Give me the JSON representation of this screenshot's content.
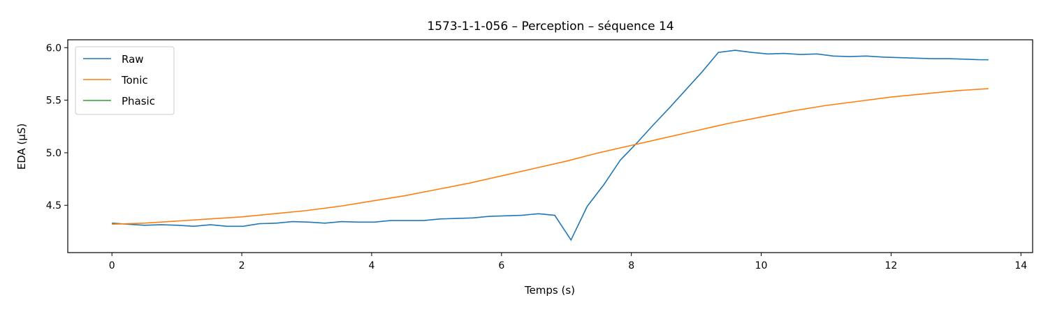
{
  "chart_data": {
    "type": "line",
    "title": "1573-1-1-056 – Perception – séquence 14",
    "xlabel": "Temps (s)",
    "ylabel": "EDA (µS)",
    "xlim": [
      -0.68,
      14.18
    ],
    "ylim": [
      4.05,
      6.075
    ],
    "xticks": [
      0,
      2,
      4,
      6,
      8,
      10,
      12,
      14
    ],
    "yticks": [
      4.5,
      5.0,
      5.5,
      6.0
    ],
    "xtick_labels": [
      "0",
      "2",
      "4",
      "6",
      "8",
      "10",
      "12",
      "14"
    ],
    "ytick_labels": [
      "4.5",
      "5.0",
      "5.5",
      "6.0"
    ],
    "grid": false,
    "legend_position": "upper-left",
    "series": [
      {
        "name": "Raw",
        "color": "#1f77b4",
        "x": [
          0,
          0.25,
          0.5,
          0.76,
          1.01,
          1.26,
          1.52,
          1.77,
          2.02,
          2.27,
          2.53,
          2.78,
          3.03,
          3.28,
          3.54,
          3.79,
          4.04,
          4.29,
          4.55,
          4.8,
          5.05,
          5.3,
          5.56,
          5.81,
          6.06,
          6.31,
          6.57,
          6.82,
          7.07,
          7.32,
          7.58,
          7.83,
          8.08,
          8.33,
          8.59,
          8.84,
          9.09,
          9.34,
          9.6,
          9.85,
          10.1,
          10.35,
          10.61,
          10.86,
          11.11,
          11.36,
          11.62,
          11.87,
          12.12,
          12.37,
          12.63,
          12.88,
          13.13,
          13.38,
          13.5
        ],
        "values": [
          4.33,
          4.32,
          4.31,
          4.315,
          4.31,
          4.3,
          4.315,
          4.3,
          4.3,
          4.325,
          4.33,
          4.345,
          4.34,
          4.33,
          4.345,
          4.34,
          4.34,
          4.355,
          4.355,
          4.355,
          4.37,
          4.375,
          4.38,
          4.395,
          4.4,
          4.405,
          4.42,
          4.405,
          4.17,
          4.49,
          4.7,
          4.93,
          5.09,
          5.26,
          5.43,
          5.6,
          5.77,
          5.955,
          5.975,
          5.955,
          5.94,
          5.945,
          5.935,
          5.94,
          5.92,
          5.915,
          5.92,
          5.91,
          5.905,
          5.9,
          5.895,
          5.895,
          5.89,
          5.885,
          5.885
        ]
      },
      {
        "name": "Tonic",
        "color": "#ff7f0e",
        "x": [
          0,
          0.5,
          1,
          1.5,
          2,
          2.5,
          3,
          3.5,
          4,
          4.5,
          5,
          5.5,
          6,
          6.5,
          7,
          7.5,
          8,
          8.5,
          9,
          9.5,
          10,
          10.5,
          11,
          11.5,
          12,
          12.5,
          13,
          13.5
        ],
        "values": [
          4.32,
          4.33,
          4.35,
          4.37,
          4.39,
          4.42,
          4.45,
          4.49,
          4.54,
          4.59,
          4.65,
          4.71,
          4.78,
          4.85,
          4.92,
          5.0,
          5.07,
          5.14,
          5.21,
          5.28,
          5.34,
          5.4,
          5.45,
          5.49,
          5.53,
          5.56,
          5.59,
          5.61
        ]
      },
      {
        "name": "Phasic",
        "color": "#2ca02c",
        "x": [],
        "values": []
      }
    ]
  }
}
